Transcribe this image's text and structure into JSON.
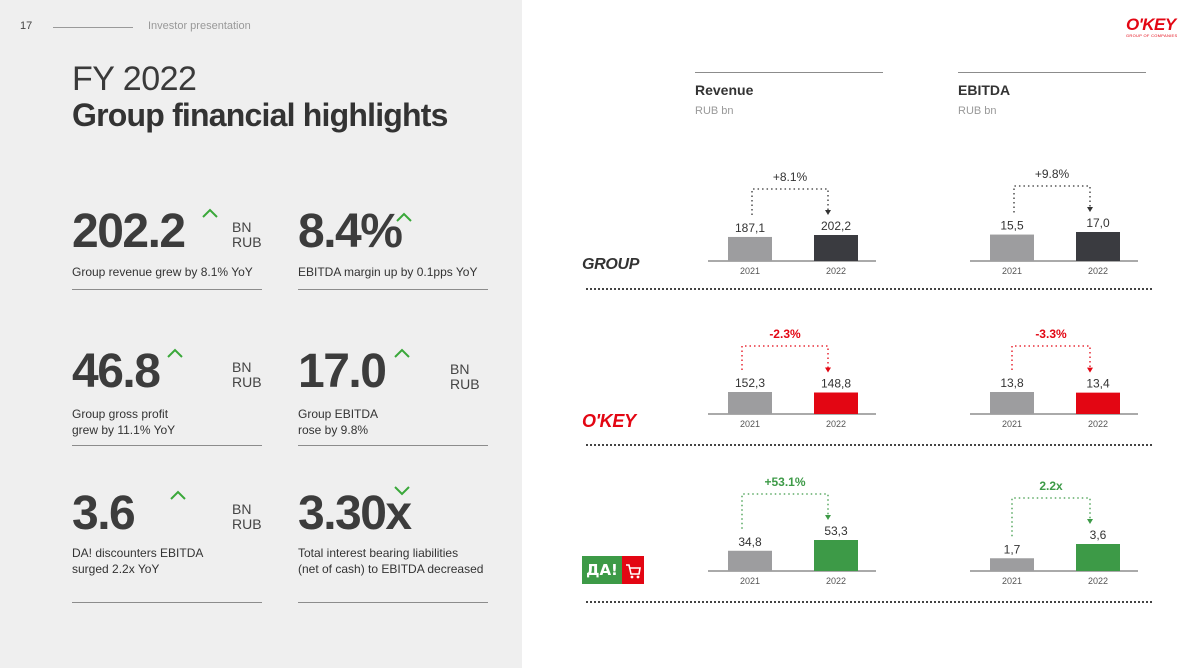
{
  "page": {
    "number": "17",
    "label": "Investor presentation",
    "title_line1": "FY 2022",
    "title_line2": "Group financial highlights",
    "logo_text": "O'KEY",
    "logo_sub": "GROUP OF COMPANIES"
  },
  "kpis": [
    {
      "value": "202.2",
      "unit_line1": "BN",
      "unit_line2": "RUB",
      "desc_line1": "Group revenue grew by 8.1% YoY",
      "desc_line2": "",
      "trend": "up"
    },
    {
      "value": "8.4%",
      "unit_line1": "",
      "unit_line2": "",
      "desc_line1": "EBITDA margin up by 0.1pps YoY",
      "desc_line2": "",
      "trend": "up"
    },
    {
      "value": "46.8",
      "unit_line1": "BN",
      "unit_line2": "RUB",
      "desc_line1": "Group gross profit",
      "desc_line2": "grew by 11.1% YoY",
      "trend": "up"
    },
    {
      "value": "17.0",
      "unit_line1": "BN",
      "unit_line2": "RUB",
      "desc_line1": "Group EBITDA",
      "desc_line2": "rose by 9.8%",
      "trend": "up"
    },
    {
      "value": "3.6",
      "unit_line1": "BN",
      "unit_line2": "RUB",
      "desc_line1": "DA! discounters EBITDA",
      "desc_line2": "surged 2.2x YoY",
      "trend": "up"
    },
    {
      "value": "3.30x",
      "unit_line1": "",
      "unit_line2": "",
      "desc_line1": "Total interest bearing liabilities",
      "desc_line2": "(net of cash) to EBITDA decreased",
      "trend": "down"
    }
  ],
  "columns": [
    {
      "title": "Revenue",
      "unit": "RUB bn"
    },
    {
      "title": "EBITDA",
      "unit": "RUB bn"
    }
  ],
  "segments": [
    {
      "name": "GROUP",
      "brand_color": "#333333"
    },
    {
      "name": "O'KEY",
      "brand_color": "#e30613"
    },
    {
      "name": "ДА!",
      "brand_color": "#3a9a3a"
    }
  ],
  "colors": {
    "up": "#3aa83a",
    "down": "#3aa83a",
    "prior_bar": "#9d9d9f",
    "group_bar": "#3a3b40",
    "okey_bar": "#e30613",
    "da_bar": "#3d9a47",
    "okey_red": "#e30613",
    "da_green": "#3d9a47"
  },
  "chart_data": [
    {
      "type": "bar",
      "segment": "GROUP",
      "metric": "Revenue",
      "categories": [
        "2021",
        "2022"
      ],
      "values": [
        187.1,
        202.2
      ],
      "labels": [
        "187,1",
        "202,2"
      ],
      "change": "+8.1%",
      "change_color": "#333333",
      "bar_color": "#3a3b40"
    },
    {
      "type": "bar",
      "segment": "GROUP",
      "metric": "EBITDA",
      "categories": [
        "2021",
        "2022"
      ],
      "values": [
        15.5,
        17.0
      ],
      "labels": [
        "15,5",
        "17,0"
      ],
      "change": "+9.8%",
      "change_color": "#333333",
      "bar_color": "#3a3b40"
    },
    {
      "type": "bar",
      "segment": "O'KEY",
      "metric": "Revenue",
      "categories": [
        "2021",
        "2022"
      ],
      "values": [
        152.3,
        148.8
      ],
      "labels": [
        "152,3",
        "148,8"
      ],
      "change": "-2.3%",
      "change_color": "#e30613",
      "bar_color": "#e30613"
    },
    {
      "type": "bar",
      "segment": "O'KEY",
      "metric": "EBITDA",
      "categories": [
        "2021",
        "2022"
      ],
      "values": [
        13.8,
        13.4
      ],
      "labels": [
        "13,8",
        "13,4"
      ],
      "change": "-3.3%",
      "change_color": "#e30613",
      "bar_color": "#e30613"
    },
    {
      "type": "bar",
      "segment": "ДА!",
      "metric": "Revenue",
      "categories": [
        "2021",
        "2022"
      ],
      "values": [
        34.8,
        53.3
      ],
      "labels": [
        "34,8",
        "53,3"
      ],
      "change": "+53.1%",
      "change_color": "#3d9a47",
      "bar_color": "#3d9a47"
    },
    {
      "type": "bar",
      "segment": "ДА!",
      "metric": "EBITDA",
      "categories": [
        "2021",
        "2022"
      ],
      "values": [
        1.7,
        3.6
      ],
      "labels": [
        "1,7",
        "3,6"
      ],
      "change": "2.2x",
      "change_color": "#3d9a47",
      "bar_color": "#3d9a47"
    }
  ]
}
